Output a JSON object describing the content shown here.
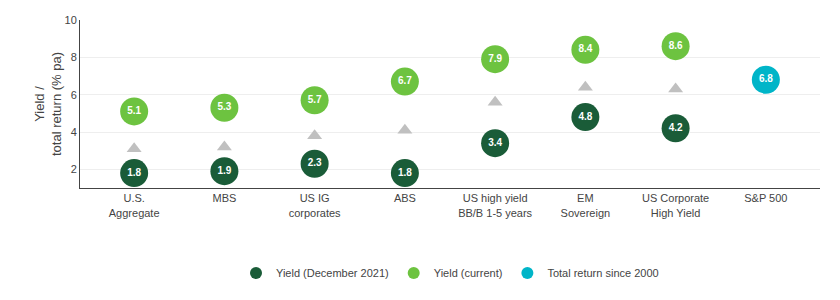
{
  "chart_data": {
    "type": "scatter",
    "categories": [
      "U.S.\nAggregate",
      "MBS",
      "US IG\ncorporates",
      "ABS",
      "US high yield\nBB/B 1-5 years",
      "EM\nSovereign",
      "US Corporate\nHigh Yield",
      "S&P 500"
    ],
    "ylabel": "Yield /\ntotal return (% pa)",
    "ylim": [
      1.0,
      10
    ],
    "yticks": [
      2,
      4,
      6,
      8,
      10
    ],
    "grid": true,
    "legend": "bottom",
    "series": [
      {
        "values": [
          3.1,
          3.2,
          3.8,
          4.1,
          5.6,
          6.4,
          6.3,
          null
        ],
        "color": "#c0c0c0",
        "marker": "triangle",
        "data_labels": false
      },
      {
        "name": "Yield (December 2021)",
        "values": [
          1.8,
          1.9,
          2.3,
          1.8,
          3.4,
          4.8,
          4.2,
          null
        ],
        "color": "#1a5c38",
        "marker": "circle",
        "data_labels": true
      },
      {
        "name": "Yield (current)",
        "values": [
          5.1,
          5.3,
          5.7,
          6.7,
          7.9,
          8.4,
          8.6,
          null
        ],
        "color": "#6dc340",
        "marker": "circle",
        "data_labels": true
      },
      {
        "name": "Total return since 2000",
        "values": [
          null,
          null,
          null,
          null,
          null,
          null,
          null,
          6.8
        ],
        "color": "#00b5c8",
        "marker": "circle",
        "data_labels": true
      }
    ]
  }
}
